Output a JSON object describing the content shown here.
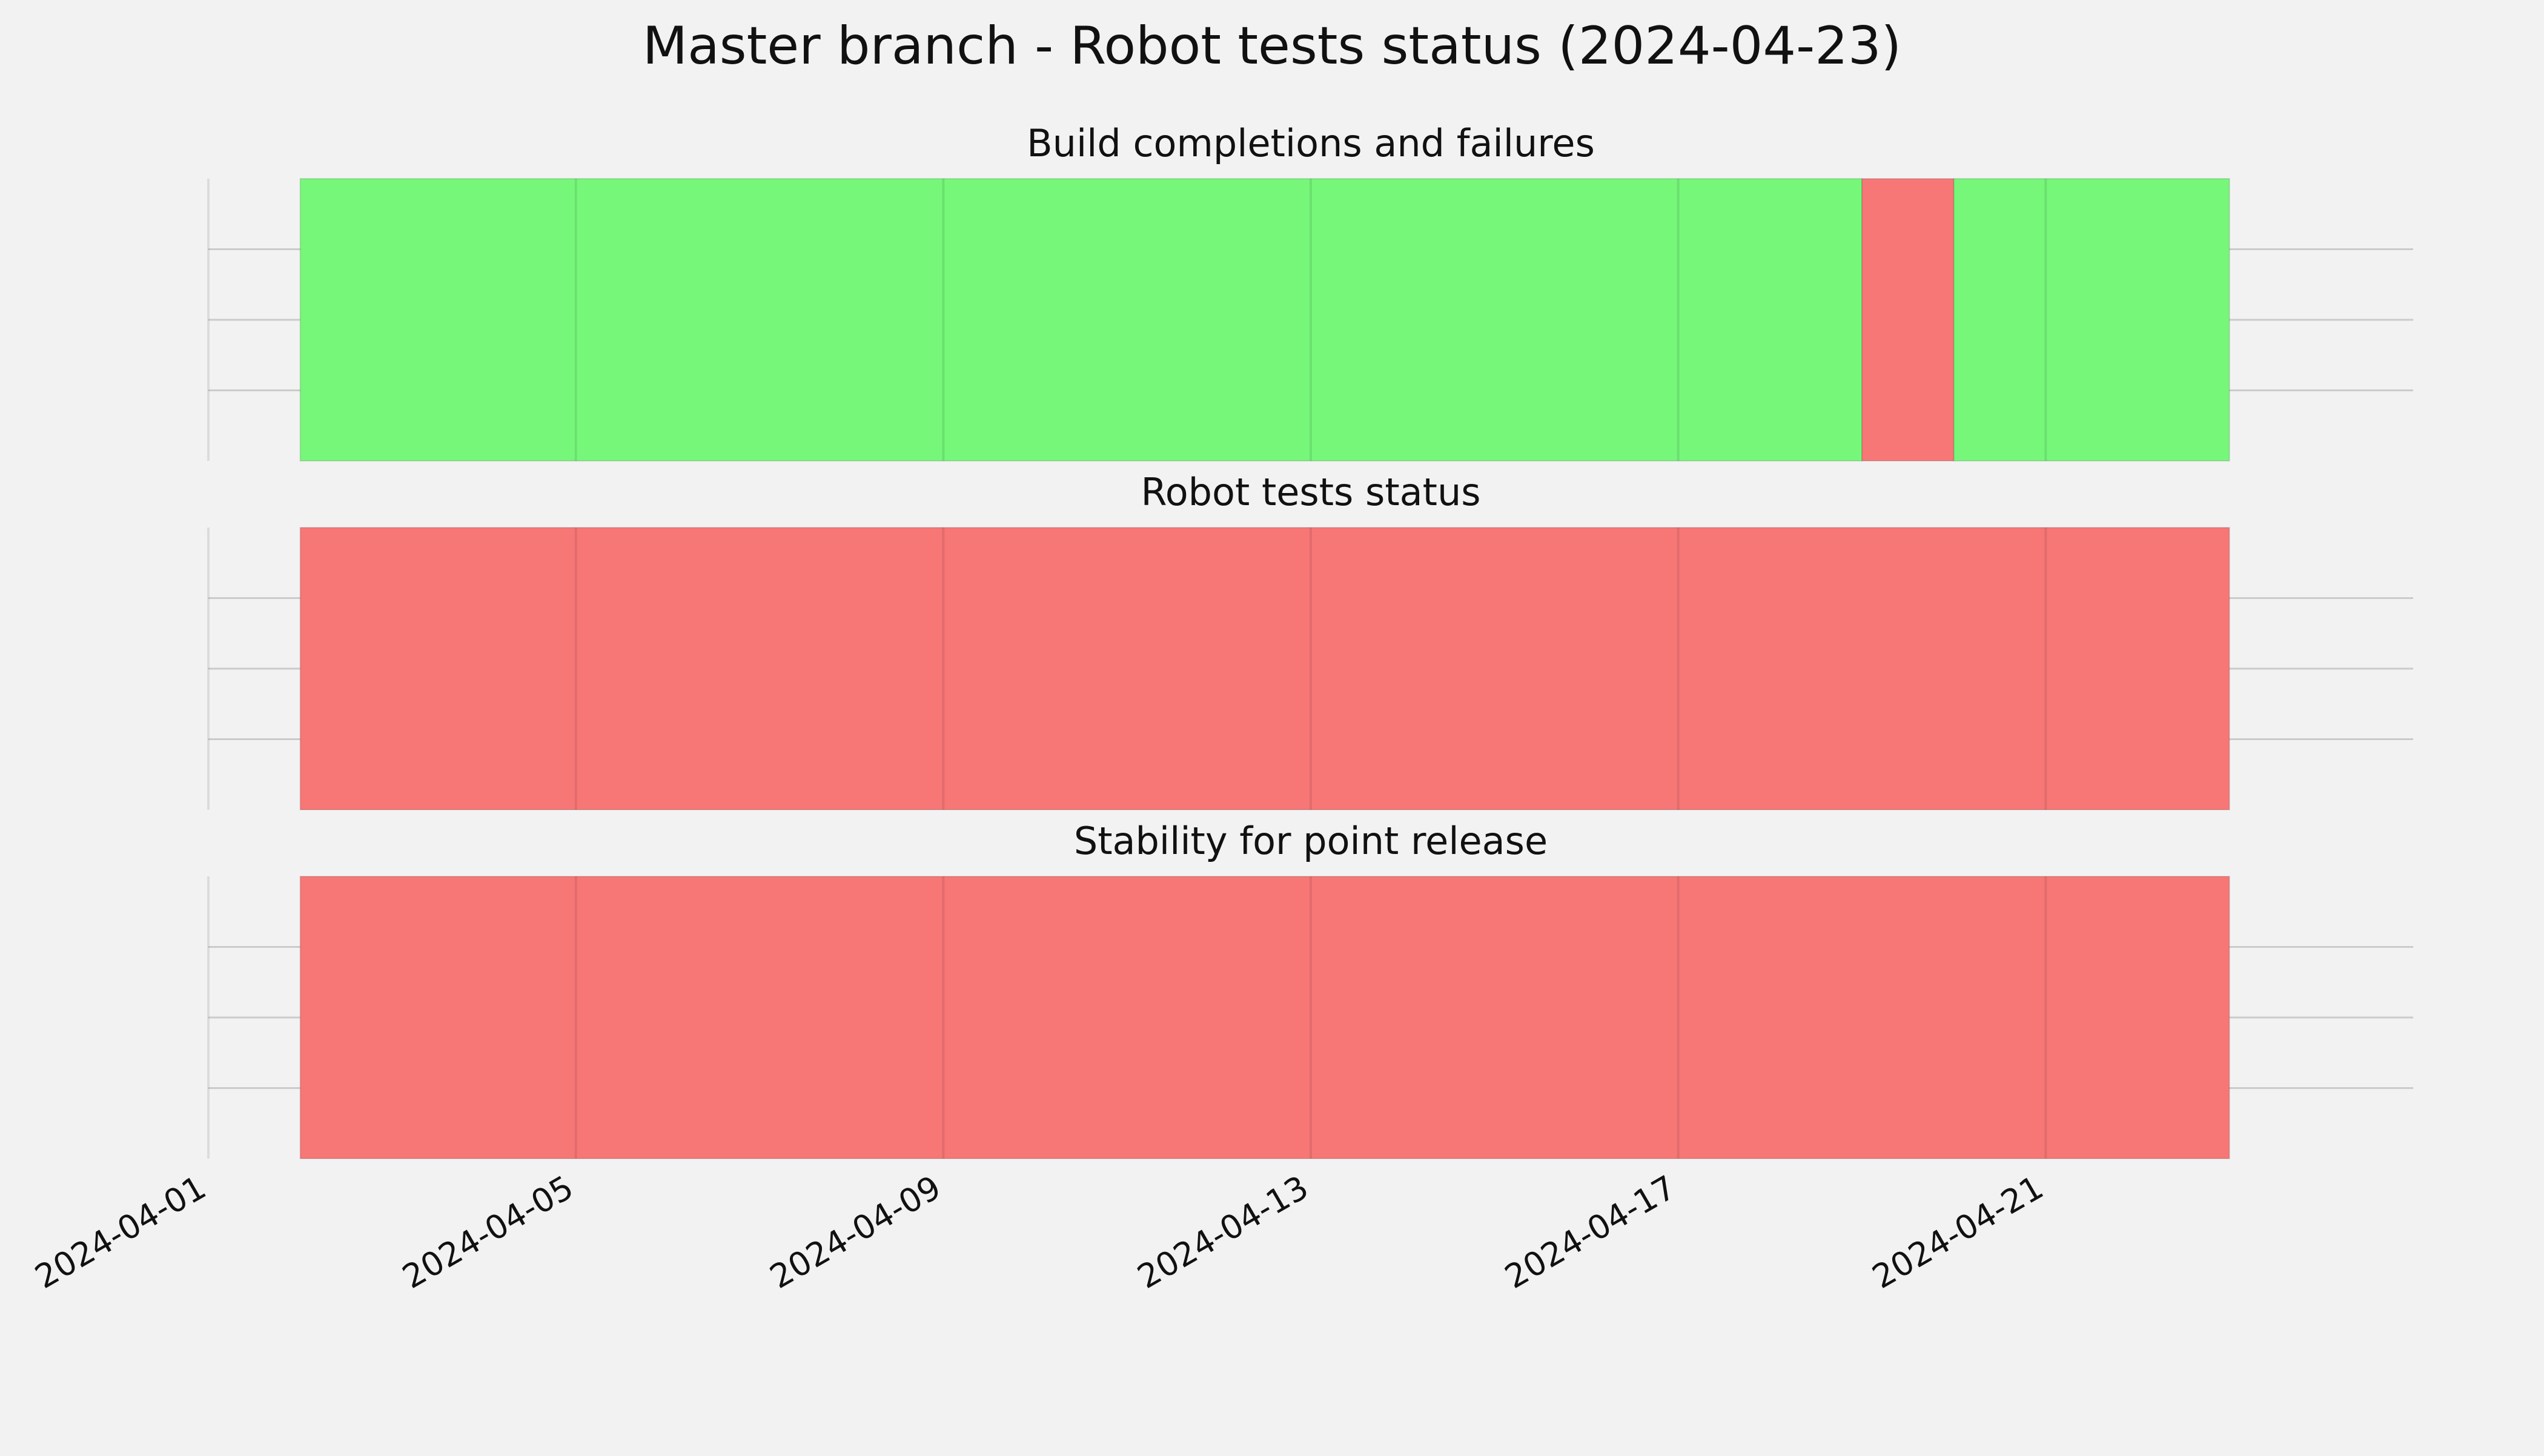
{
  "chart_data": {
    "type": "timeline",
    "title": "Master branch - Robot tests status (2024-04-23)",
    "x_axis": {
      "type": "date",
      "range": [
        "2024-04-01",
        "2024-04-25"
      ],
      "ticks": [
        "2024-04-01",
        "2024-04-05",
        "2024-04-09",
        "2024-04-13",
        "2024-04-17",
        "2024-04-21"
      ]
    },
    "grid": true,
    "status_colors": {
      "pass": "#76f77a",
      "fail": "#f77776"
    },
    "panels": [
      {
        "title": "Build completions and failures",
        "segments": [
          {
            "start": "2024-04-02",
            "end": "2024-04-19",
            "status": "pass"
          },
          {
            "start": "2024-04-19",
            "end": "2024-04-20",
            "status": "fail"
          },
          {
            "start": "2024-04-20",
            "end": "2024-04-23",
            "status": "pass"
          }
        ]
      },
      {
        "title": "Robot tests status",
        "segments": [
          {
            "start": "2024-04-02",
            "end": "2024-04-23",
            "status": "fail"
          }
        ]
      },
      {
        "title": "Stability for point release",
        "segments": [
          {
            "start": "2024-04-02",
            "end": "2024-04-23",
            "status": "fail"
          }
        ]
      }
    ]
  }
}
